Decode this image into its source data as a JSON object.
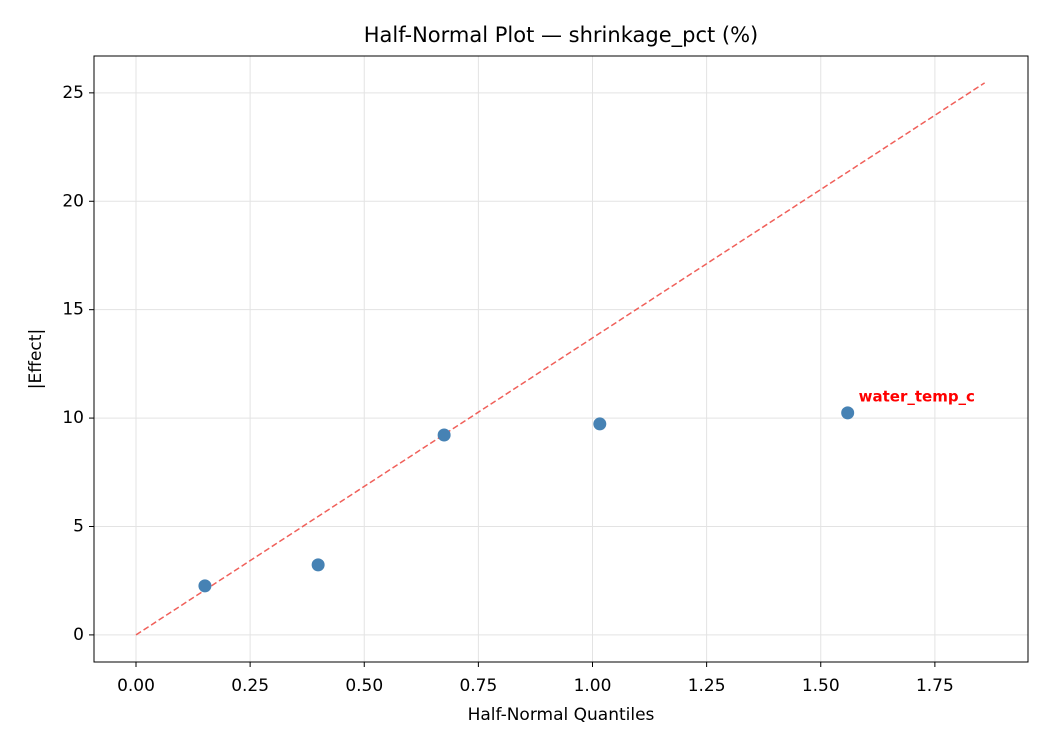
{
  "chart_data": {
    "type": "scatter",
    "title": "Half-Normal Plot — shrinkage_pct (%)",
    "x_label": "Half-Normal Quantiles",
    "y_label": "|Effect|",
    "series": [
      {
        "color": "#4682b4",
        "x": [
          0.151,
          0.399,
          0.675,
          1.016,
          1.559
        ],
        "values": [
          2.26,
          3.23,
          9.22,
          9.73,
          10.24
        ]
      }
    ],
    "reference_line": {
      "color": "#f0605a",
      "x": [
        0,
        1.859
      ],
      "y": [
        0,
        25.46
      ]
    },
    "annotations": [
      {
        "text": "water_temp_c",
        "color": "#ff0000",
        "x": 1.583,
        "y": 10.98
      }
    ],
    "xlim": [
      -0.092,
      1.954
    ],
    "ylim": [
      -1.25,
      26.7
    ],
    "xticks": [
      {
        "value": 0,
        "label": "0.00"
      },
      {
        "value": 0.25,
        "label": "0.25"
      },
      {
        "value": 0.5,
        "label": "0.50"
      },
      {
        "value": 0.75,
        "label": "0.75"
      },
      {
        "value": 1,
        "label": "1.00"
      },
      {
        "value": 1.25,
        "label": "1.25"
      },
      {
        "value": 1.5,
        "label": "1.50"
      },
      {
        "value": 1.75,
        "label": "1.75"
      }
    ],
    "yticks": [
      0,
      5,
      10,
      15,
      20,
      25
    ],
    "grid": true
  }
}
